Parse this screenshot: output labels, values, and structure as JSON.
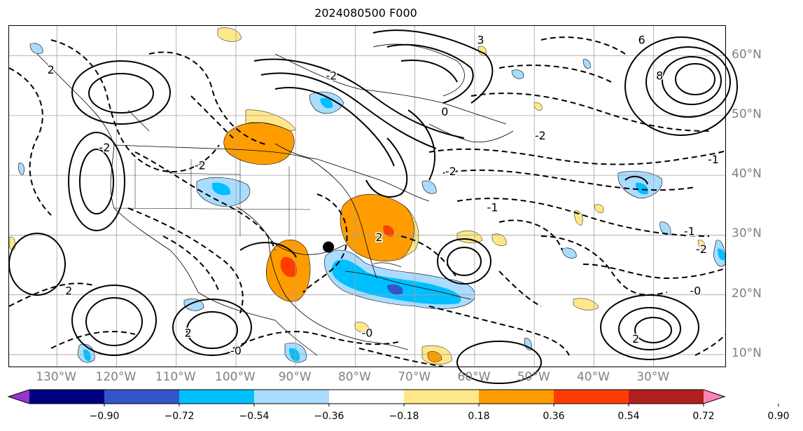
{
  "title": "2024080500 F000",
  "lat_labels": [
    {
      "text": "60°N",
      "value": 60
    },
    {
      "text": "50°N",
      "value": 50
    },
    {
      "text": "40°N",
      "value": 40
    },
    {
      "text": "30°N",
      "value": 30
    },
    {
      "text": "20°N",
      "value": 20
    },
    {
      "text": "10°N",
      "value": 10
    }
  ],
  "lon_labels": [
    {
      "text": "130°W",
      "value": -130
    },
    {
      "text": "120°W",
      "value": -120
    },
    {
      "text": "110°W",
      "value": -110
    },
    {
      "text": "100°W",
      "value": -100
    },
    {
      "text": "90°W",
      "value": -90
    },
    {
      "text": "80°W",
      "value": -80
    },
    {
      "text": "70°W",
      "value": -70
    },
    {
      "text": "60°W",
      "value": -60
    },
    {
      "text": "50°W",
      "value": -50
    },
    {
      "text": "40°W",
      "value": -40
    },
    {
      "text": "30°W",
      "value": -30
    }
  ],
  "extent": {
    "lon_min": -138,
    "lon_max": -18,
    "lat_min": 8,
    "lat_max": 65
  },
  "colorbar": {
    "ticks": [
      "−0.90",
      "−0.72",
      "−0.54",
      "−0.36",
      "−0.18",
      "0.18",
      "0.36",
      "0.54",
      "0.72",
      "0.90"
    ],
    "colors": [
      "#9933cc",
      "#000080",
      "#3355cc",
      "#00bfff",
      "#aadcff",
      "#ffffff",
      "#ffe88a",
      "#ff9d00",
      "#ff3d00",
      "#b21f1f",
      "#ff82b4"
    ]
  },
  "marker": {
    "lon": -84.5,
    "lat": 28.0
  },
  "contour_labels": [
    {
      "text": "2",
      "lon": -131,
      "lat": 57
    },
    {
      "text": "-2",
      "lon": -122,
      "lat": 44
    },
    {
      "text": "-2",
      "lon": -106,
      "lat": 41
    },
    {
      "text": "-2",
      "lon": -84,
      "lat": 56
    },
    {
      "text": "-2",
      "lon": -64,
      "lat": 40
    },
    {
      "text": "-2",
      "lon": -49,
      "lat": 46
    },
    {
      "text": "-1",
      "lon": -20,
      "lat": 42
    },
    {
      "text": "-1",
      "lon": -24,
      "lat": 30
    },
    {
      "text": "-2",
      "lon": -22,
      "lat": 27
    },
    {
      "text": "-0",
      "lon": -23,
      "lat": 20
    },
    {
      "text": "-1",
      "lon": -57,
      "lat": 34
    },
    {
      "text": "2",
      "lon": -76,
      "lat": 29
    },
    {
      "text": "-0",
      "lon": -78,
      "lat": 13
    },
    {
      "text": "-0",
      "lon": -100,
      "lat": 10
    },
    {
      "text": "2",
      "lon": -108,
      "lat": 13
    },
    {
      "text": "2",
      "lon": -128,
      "lat": 20
    },
    {
      "text": "2",
      "lon": -33,
      "lat": 12
    },
    {
      "text": "6",
      "lon": -32,
      "lat": 62
    },
    {
      "text": "8",
      "lon": -29,
      "lat": 56
    },
    {
      "text": "3",
      "lon": -59,
      "lat": 62
    },
    {
      "text": "0",
      "lon": -65,
      "lat": 50
    }
  ]
}
